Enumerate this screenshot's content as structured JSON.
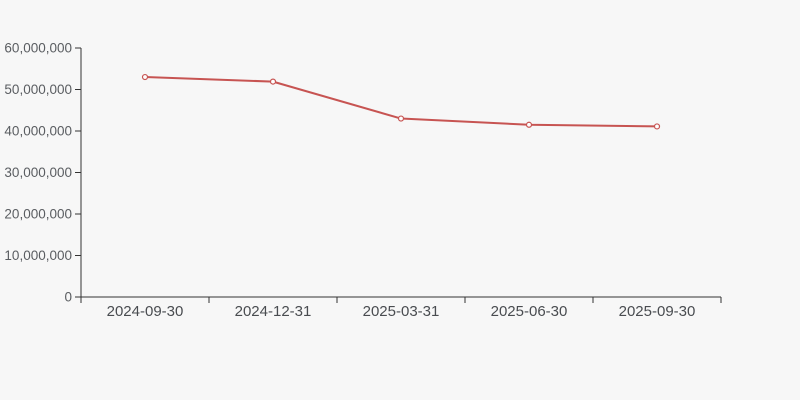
{
  "chart_data": {
    "type": "line",
    "categories": [
      "2024-09-30",
      "2024-12-31",
      "2025-03-31",
      "2025-06-30",
      "2025-09-30"
    ],
    "values": [
      53000000,
      51900000,
      43000000,
      41500000,
      41100000
    ],
    "ylim": [
      0,
      60000000
    ],
    "y_tick_step": 10000000,
    "y_tick_labels": [
      "0",
      "10,000,000",
      "20,000,000",
      "30,000,000",
      "40,000,000",
      "50,000,000",
      "60,000,000"
    ],
    "grid": false,
    "legend": "none",
    "marker": "open-circle",
    "colors": {
      "background": "#f7f7f7",
      "line": "#c75452",
      "marker_fill": "#fefefe",
      "axis": "#333333",
      "y_label": "#5a5d61",
      "x_label": "#494c50"
    }
  }
}
